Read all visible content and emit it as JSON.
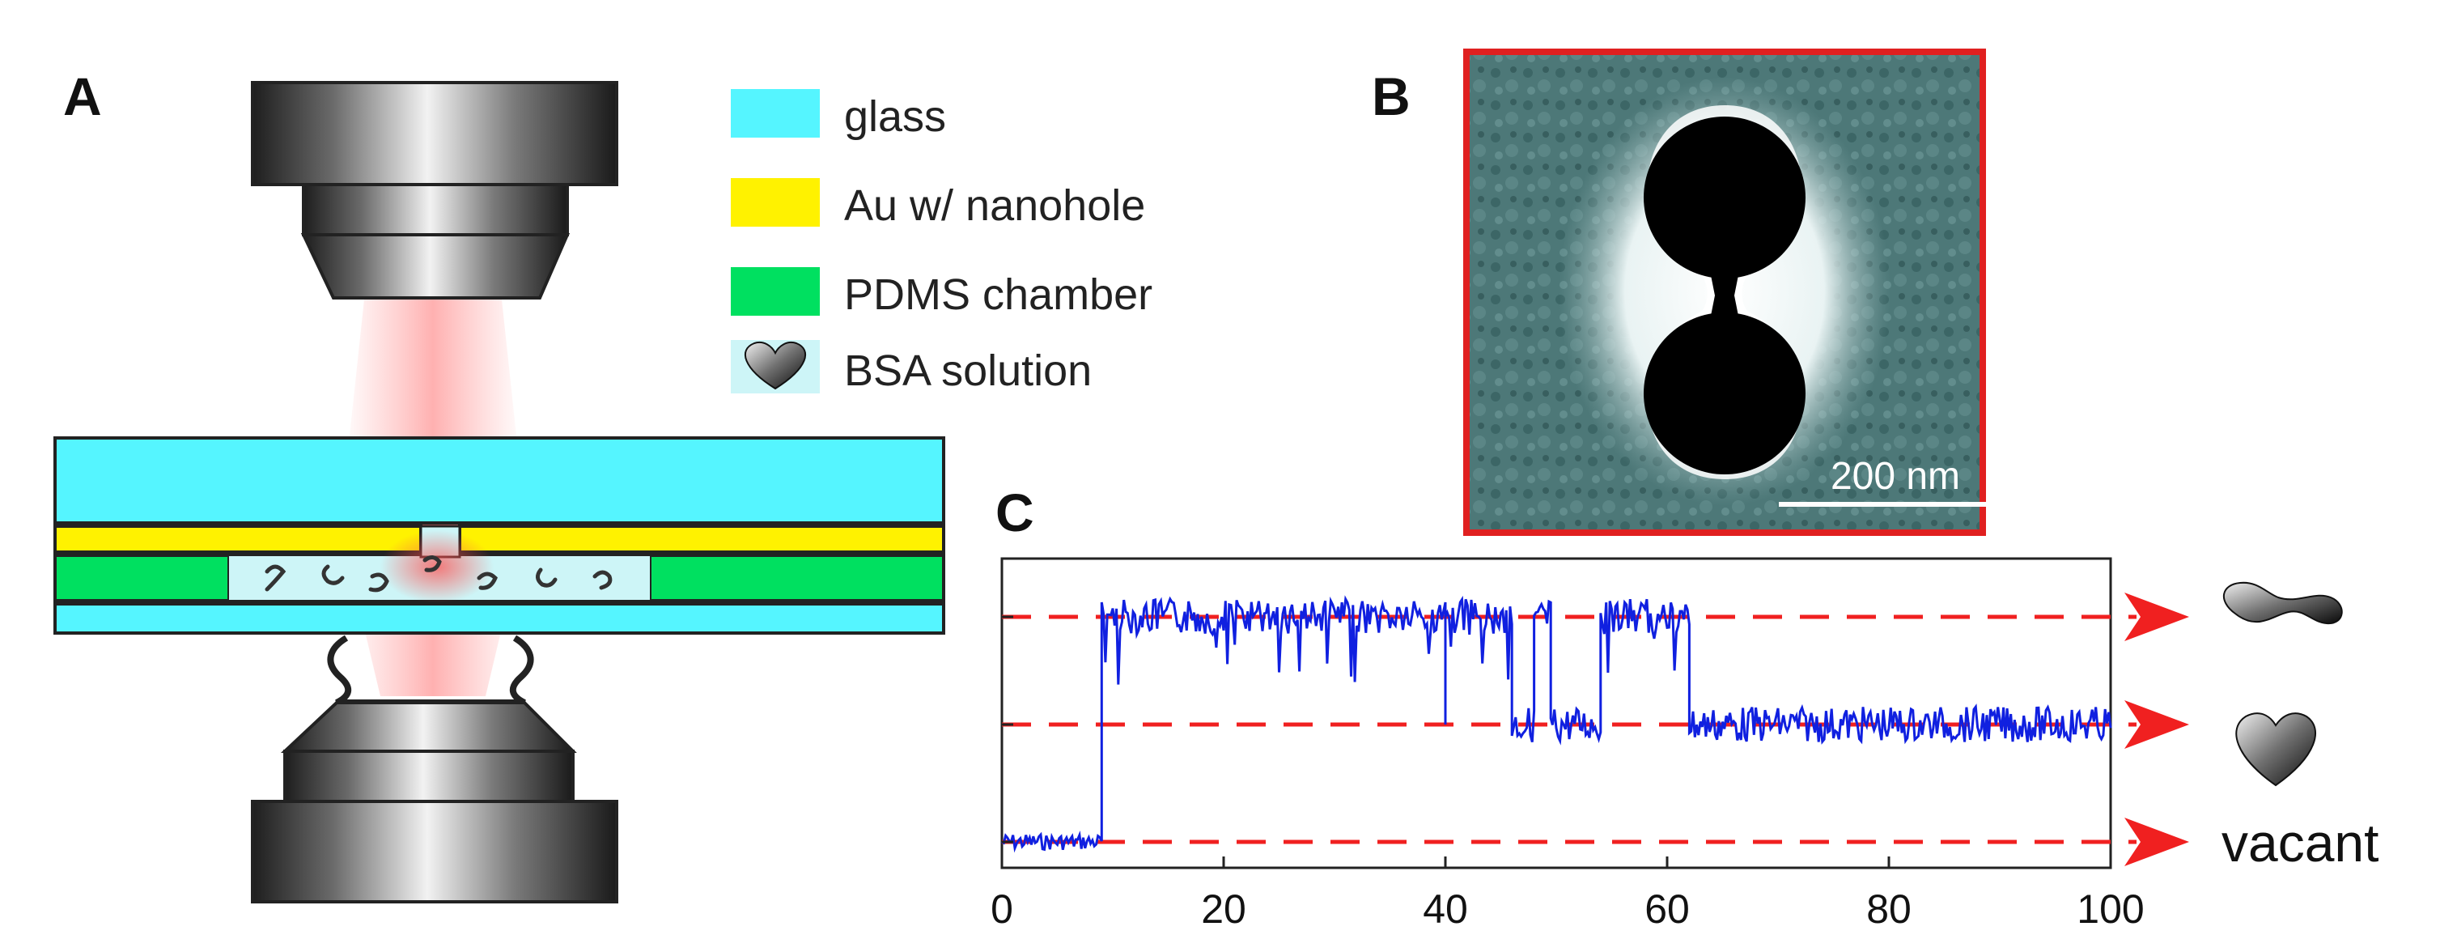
{
  "panels": {
    "a": "A",
    "b": "B",
    "c": "C"
  },
  "legend": [
    {
      "label": "glass",
      "color": "#55F5FF"
    },
    {
      "label": "Au w/ nanohole",
      "color": "#FFF200"
    },
    {
      "label": "PDMS chamber",
      "color": "#00E060"
    },
    {
      "label": "BSA solution",
      "color": "#CDF5F7"
    }
  ],
  "sem": {
    "scale_bar": "200 nm",
    "frame_color": "#E02020"
  },
  "chart_data": {
    "type": "line",
    "xlim": [
      0,
      100
    ],
    "x_ticks": [
      "0",
      "20",
      "40",
      "60",
      "80",
      "100"
    ],
    "levels": [
      {
        "name": "vacant",
        "value": 0
      },
      {
        "name": "",
        "value": 1
      },
      {
        "name": "",
        "value": 2
      }
    ],
    "series": [
      {
        "color": "#1020E0",
        "segments": [
          {
            "x0": 0,
            "x1": 9,
            "level": 0
          },
          {
            "x0": 9,
            "x1": 46,
            "level": 2
          },
          {
            "x0": 46,
            "x1": 48,
            "level": 1
          },
          {
            "x0": 48,
            "x1": 49.5,
            "level": 2
          },
          {
            "x0": 49.5,
            "x1": 54,
            "level": 1
          },
          {
            "x0": 54,
            "x1": 62,
            "level": 2
          },
          {
            "x0": 62,
            "x1": 100,
            "level": 1
          }
        ],
        "spikes": [
          {
            "x": 40,
            "to": 1
          }
        ]
      }
    ],
    "reference_line_color": "#F02020"
  }
}
